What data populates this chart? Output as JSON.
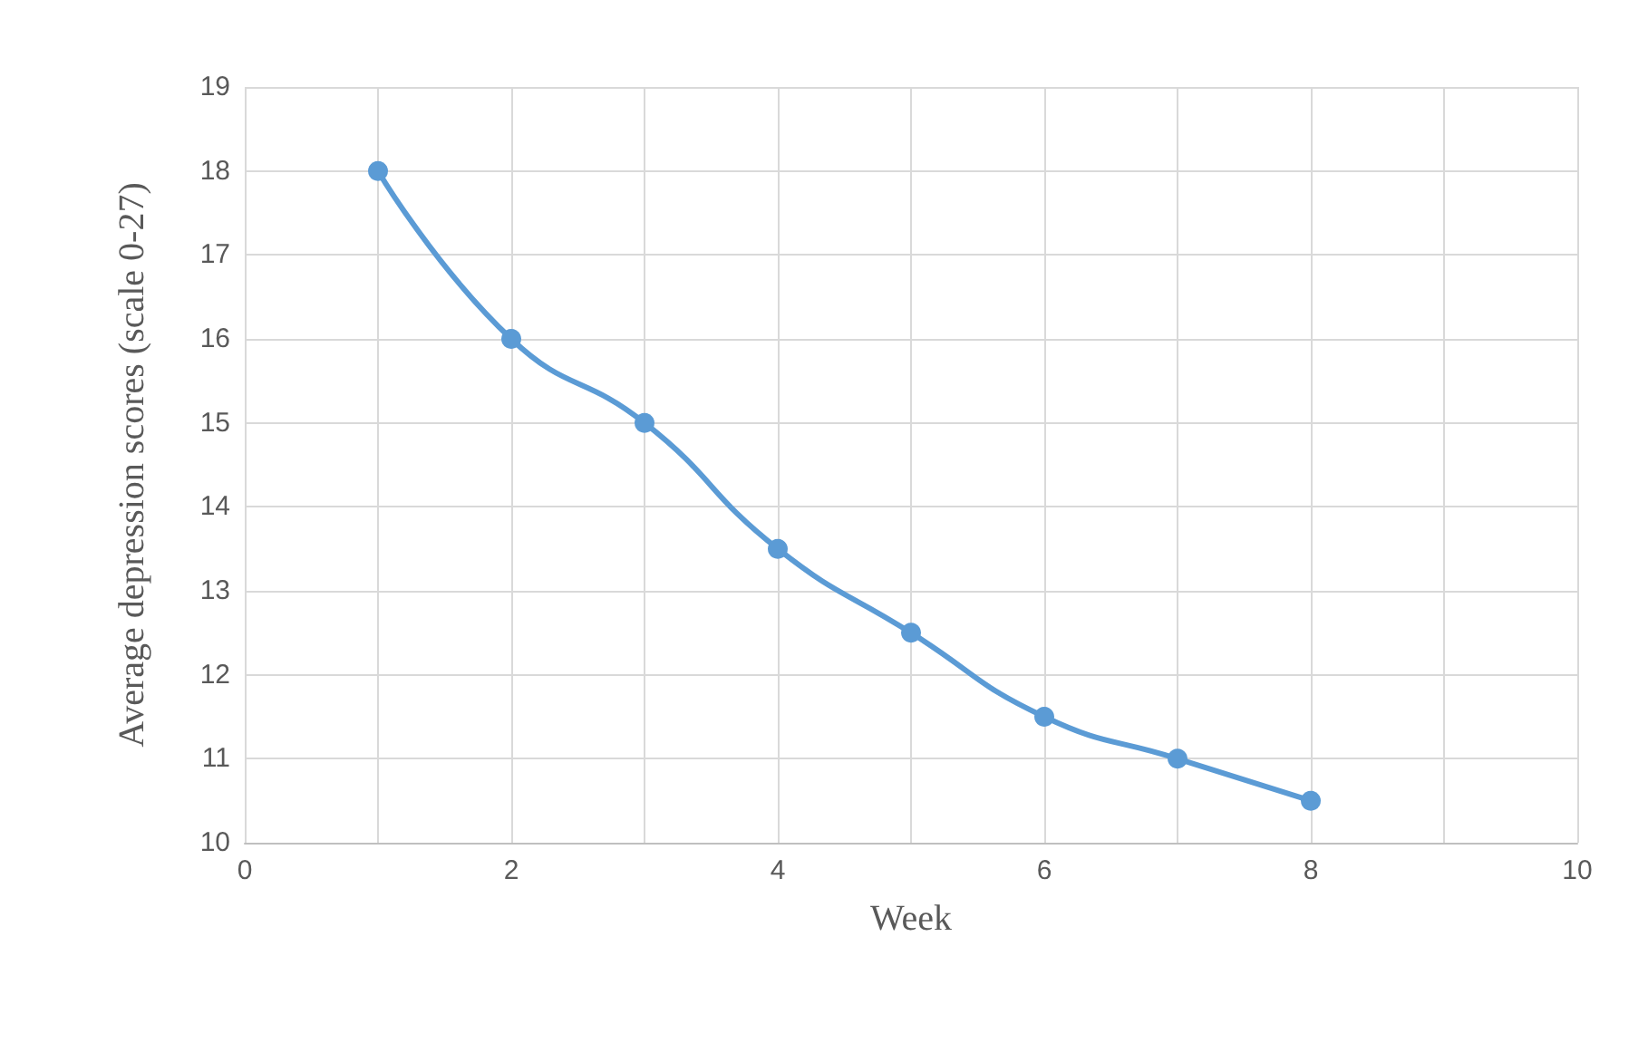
{
  "chart_data": {
    "type": "line",
    "xlabel": "Week",
    "ylabel": "Average depression scores (scale 0-27)",
    "x": [
      1,
      2,
      3,
      4,
      5,
      6,
      7,
      8
    ],
    "series": [
      {
        "color": "#5b9bd5",
        "values": [
          18,
          16,
          15,
          13.5,
          12.5,
          11.5,
          11,
          10.5
        ]
      }
    ],
    "xlim": [
      0,
      10
    ],
    "xticks": [
      0,
      {
        "value": 1,
        "label": null
      },
      2,
      {
        "value": 3,
        "label": null
      },
      4,
      {
        "value": 5,
        "label": null
      },
      6,
      {
        "value": 7,
        "label": null
      },
      8,
      {
        "value": 9,
        "label": null
      },
      10
    ],
    "ylim": [
      10,
      19
    ],
    "yticks": [
      10,
      11,
      12,
      13,
      14,
      15,
      16,
      17,
      18,
      19
    ],
    "grid": true,
    "marker": "circle",
    "line_style": "solid"
  }
}
